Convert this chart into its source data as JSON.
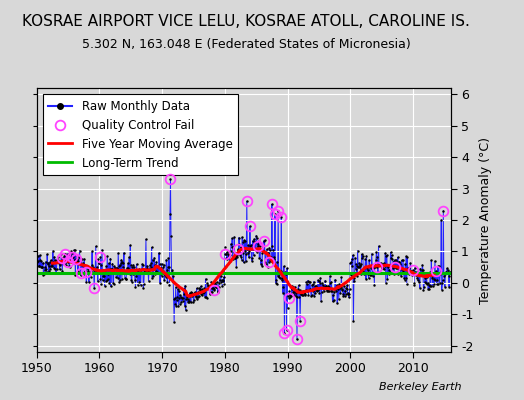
{
  "title": "KOSRAE AIRPORT VICE LELU, KOSRAE ATOLL, CAROLINE IS.",
  "subtitle": "5.302 N, 163.048 E (Federated States of Micronesia)",
  "ylabel_right": "Temperature Anomaly (°C)",
  "watermark": "Berkeley Earth",
  "xlim": [
    1950,
    2016
  ],
  "ylim": [
    -2.2,
    6.2
  ],
  "yticks": [
    -2,
    -1,
    0,
    1,
    2,
    3,
    4,
    5,
    6
  ],
  "xticks": [
    1950,
    1960,
    1970,
    1980,
    1990,
    2000,
    2010
  ],
  "long_term_trend": 0.3,
  "long_term_color": "#00bb00",
  "raw_line_color": "#2222ff",
  "ma_color": "#ff0000",
  "qc_color": "#ff44ff",
  "bg_color": "#d8d8d8",
  "plot_bg_color": "#d8d8d8",
  "title_fontsize": 11,
  "subtitle_fontsize": 9,
  "legend_fontsize": 8.5,
  "axis_fontsize": 9
}
